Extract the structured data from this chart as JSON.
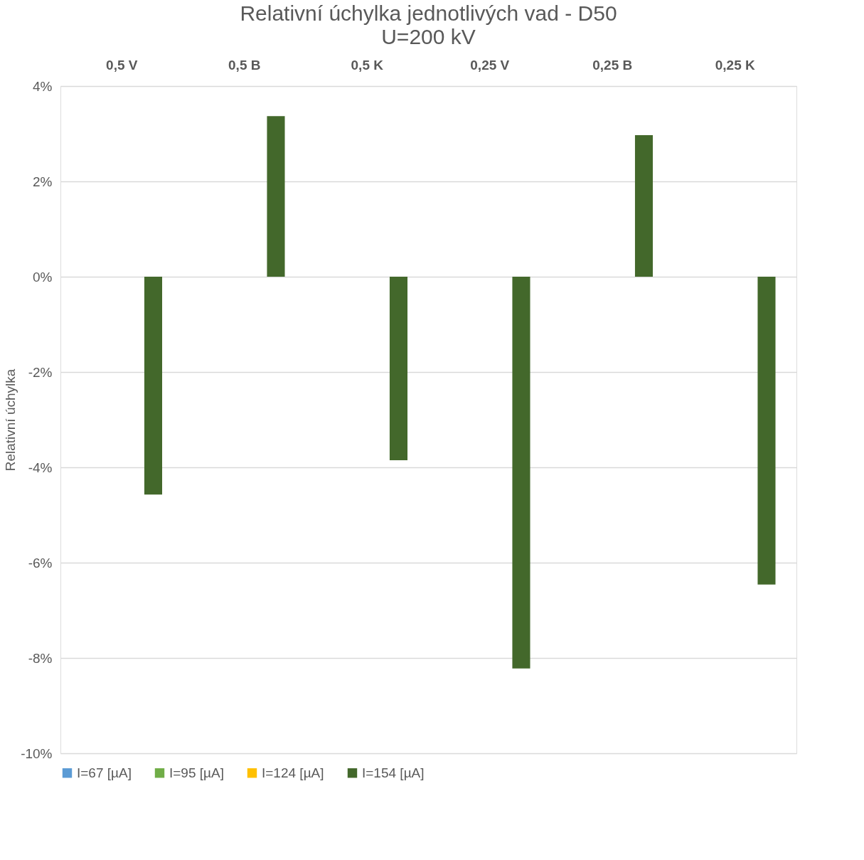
{
  "chart_data": {
    "type": "bar",
    "title": "Relativní úchylka jednotlivých vad - D50",
    "subtitle": "U=200 kV",
    "ylabel": "Relativní úchylka",
    "categories": [
      "0,5 V",
      "0,5 B",
      "0,5 K",
      "0,25 V",
      "0,25 B",
      "0,25 K"
    ],
    "series": [
      {
        "name": "I=67 [µA]",
        "color": "#5b9bd5",
        "values": [
          null,
          null,
          null,
          null,
          null,
          null
        ]
      },
      {
        "name": "I=95 [µA]",
        "color": "#70ad47",
        "values": [
          null,
          null,
          null,
          null,
          null,
          null
        ]
      },
      {
        "name": "I=124 [µA]",
        "color": "#ffc000",
        "values": [
          null,
          null,
          null,
          null,
          null,
          null
        ]
      },
      {
        "name": "I=154 [µA]",
        "color": "#43682b",
        "values": [
          -4.57,
          3.37,
          -3.85,
          -8.22,
          2.97,
          -6.46
        ]
      }
    ],
    "ylim": [
      -10,
      4
    ],
    "yticks": [
      {
        "value": -10,
        "label": "-10%"
      },
      {
        "value": -8,
        "label": "-8%"
      },
      {
        "value": -6,
        "label": "-6%"
      },
      {
        "value": -4,
        "label": "-4%"
      },
      {
        "value": -2,
        "label": "-2%"
      },
      {
        "value": 0,
        "label": "0%"
      },
      {
        "value": 2,
        "label": "2%"
      },
      {
        "value": 4,
        "label": "4%"
      }
    ],
    "grid": "y",
    "legend": "bottom"
  }
}
